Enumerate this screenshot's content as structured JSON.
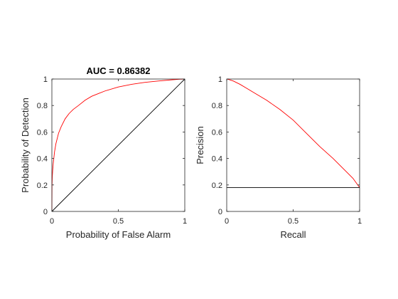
{
  "chart_data": [
    {
      "type": "line",
      "title": "AUC = 0.86382",
      "xlabel": "Probability of False Alarm",
      "ylabel": "Probability of Detection",
      "xlim": [
        0,
        1
      ],
      "ylim": [
        0,
        1
      ],
      "xticks": [
        0,
        0.5,
        1
      ],
      "yticks": [
        0,
        0.2,
        0.4,
        0.6,
        0.8,
        1
      ],
      "xtick_labels": [
        "0",
        "0.5",
        "1"
      ],
      "ytick_labels": [
        "0",
        "0.2",
        "0.4",
        "0.6",
        "0.8",
        "1"
      ],
      "grid": false,
      "series": [
        {
          "color": "#ff0000",
          "x": [
            0,
            0.001,
            0.003,
            0.006,
            0.01,
            0.02,
            0.03,
            0.05,
            0.07,
            0.1,
            0.13,
            0.16,
            0.2,
            0.25,
            0.3,
            0.35,
            0.4,
            0.5,
            0.6,
            0.7,
            0.8,
            0.9,
            0.95,
            1
          ],
          "y": [
            0,
            0.2,
            0.26,
            0.31,
            0.36,
            0.45,
            0.51,
            0.59,
            0.64,
            0.7,
            0.74,
            0.77,
            0.8,
            0.84,
            0.87,
            0.89,
            0.91,
            0.94,
            0.96,
            0.975,
            0.985,
            0.994,
            0.998,
            1
          ]
        },
        {
          "color": "#000000",
          "x": [
            0,
            1
          ],
          "y": [
            0,
            1
          ]
        }
      ]
    },
    {
      "type": "line",
      "title": "",
      "xlabel": "Recall",
      "ylabel": "Precision",
      "xlim": [
        0,
        1
      ],
      "ylim": [
        0,
        1
      ],
      "xticks": [
        0,
        0.5,
        1
      ],
      "yticks": [
        0,
        0.2,
        0.4,
        0.6,
        0.8,
        1
      ],
      "xtick_labels": [
        "0",
        "0.5",
        "1"
      ],
      "ytick_labels": [
        "0",
        "0.2",
        "0.4",
        "0.6",
        "0.8",
        "1"
      ],
      "grid": false,
      "series": [
        {
          "color": "#ff0000",
          "x": [
            0,
            0.02,
            0.05,
            0.1,
            0.15,
            0.2,
            0.3,
            0.4,
            0.5,
            0.6,
            0.7,
            0.8,
            0.9,
            0.95,
            1
          ],
          "y": [
            1,
            0.995,
            0.985,
            0.96,
            0.93,
            0.9,
            0.84,
            0.77,
            0.69,
            0.59,
            0.49,
            0.4,
            0.3,
            0.25,
            0.18
          ]
        },
        {
          "color": "#000000",
          "x": [
            0,
            1
          ],
          "y": [
            0.18,
            0.18
          ]
        }
      ]
    }
  ]
}
